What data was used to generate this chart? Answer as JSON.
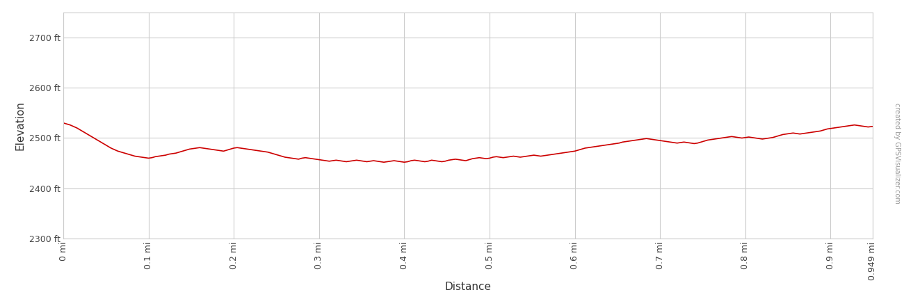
{
  "xlabel": "Distance",
  "ylabel": "Elevation",
  "watermark": "created by GPSVisualizer.com",
  "line_color": "#cc0000",
  "line_width": 1.2,
  "background_color": "#ffffff",
  "grid_color": "#cccccc",
  "ylim": [
    2300,
    2750
  ],
  "xlim": [
    0,
    0.949
  ],
  "yticks": [
    2300,
    2400,
    2500,
    2600,
    2700
  ],
  "ytick_labels": [
    "2300 ft",
    "2400 ft",
    "2500 ft",
    "2600 ft",
    "2700 ft"
  ],
  "xticks": [
    0,
    0.1,
    0.2,
    0.3,
    0.4,
    0.5,
    0.6,
    0.7,
    0.8,
    0.9,
    0.949
  ],
  "xtick_labels": [
    "0 mi",
    "0.1 mi",
    "0.2 mi",
    "0.3 mi",
    "0.4 mi",
    "0.5 mi",
    "0.6 mi",
    "0.7 mi",
    "0.8 mi",
    "0.9 mi",
    "0.949 mi"
  ],
  "elevation_data": [
    [
      0.0,
      2530
    ],
    [
      0.004,
      2528
    ],
    [
      0.008,
      2526
    ],
    [
      0.012,
      2523
    ],
    [
      0.016,
      2520
    ],
    [
      0.02,
      2516
    ],
    [
      0.024,
      2512
    ],
    [
      0.028,
      2508
    ],
    [
      0.032,
      2504
    ],
    [
      0.036,
      2500
    ],
    [
      0.04,
      2496
    ],
    [
      0.044,
      2492
    ],
    [
      0.048,
      2488
    ],
    [
      0.052,
      2484
    ],
    [
      0.056,
      2480
    ],
    [
      0.06,
      2477
    ],
    [
      0.064,
      2474
    ],
    [
      0.068,
      2472
    ],
    [
      0.072,
      2470
    ],
    [
      0.076,
      2468
    ],
    [
      0.08,
      2466
    ],
    [
      0.084,
      2464
    ],
    [
      0.088,
      2463
    ],
    [
      0.092,
      2462
    ],
    [
      0.096,
      2461
    ],
    [
      0.1,
      2460
    ],
    [
      0.104,
      2461
    ],
    [
      0.108,
      2463
    ],
    [
      0.112,
      2464
    ],
    [
      0.116,
      2465
    ],
    [
      0.12,
      2466
    ],
    [
      0.124,
      2468
    ],
    [
      0.128,
      2469
    ],
    [
      0.132,
      2470
    ],
    [
      0.136,
      2472
    ],
    [
      0.14,
      2474
    ],
    [
      0.144,
      2476
    ],
    [
      0.148,
      2478
    ],
    [
      0.152,
      2479
    ],
    [
      0.156,
      2480
    ],
    [
      0.16,
      2481
    ],
    [
      0.164,
      2480
    ],
    [
      0.168,
      2479
    ],
    [
      0.172,
      2478
    ],
    [
      0.176,
      2477
    ],
    [
      0.18,
      2476
    ],
    [
      0.184,
      2475
    ],
    [
      0.188,
      2474
    ],
    [
      0.192,
      2476
    ],
    [
      0.196,
      2478
    ],
    [
      0.2,
      2480
    ],
    [
      0.204,
      2481
    ],
    [
      0.208,
      2480
    ],
    [
      0.212,
      2479
    ],
    [
      0.216,
      2478
    ],
    [
      0.22,
      2477
    ],
    [
      0.224,
      2476
    ],
    [
      0.228,
      2475
    ],
    [
      0.232,
      2474
    ],
    [
      0.236,
      2473
    ],
    [
      0.24,
      2472
    ],
    [
      0.244,
      2470
    ],
    [
      0.248,
      2468
    ],
    [
      0.252,
      2466
    ],
    [
      0.256,
      2464
    ],
    [
      0.26,
      2462
    ],
    [
      0.264,
      2461
    ],
    [
      0.268,
      2460
    ],
    [
      0.272,
      2459
    ],
    [
      0.276,
      2458
    ],
    [
      0.28,
      2460
    ],
    [
      0.284,
      2461
    ],
    [
      0.288,
      2460
    ],
    [
      0.292,
      2459
    ],
    [
      0.296,
      2458
    ],
    [
      0.3,
      2457
    ],
    [
      0.304,
      2456
    ],
    [
      0.308,
      2455
    ],
    [
      0.312,
      2454
    ],
    [
      0.316,
      2455
    ],
    [
      0.32,
      2456
    ],
    [
      0.324,
      2455
    ],
    [
      0.328,
      2454
    ],
    [
      0.332,
      2453
    ],
    [
      0.336,
      2454
    ],
    [
      0.34,
      2455
    ],
    [
      0.344,
      2456
    ],
    [
      0.348,
      2455
    ],
    [
      0.352,
      2454
    ],
    [
      0.356,
      2453
    ],
    [
      0.36,
      2454
    ],
    [
      0.364,
      2455
    ],
    [
      0.368,
      2454
    ],
    [
      0.372,
      2453
    ],
    [
      0.376,
      2452
    ],
    [
      0.38,
      2453
    ],
    [
      0.384,
      2454
    ],
    [
      0.388,
      2455
    ],
    [
      0.392,
      2454
    ],
    [
      0.396,
      2453
    ],
    [
      0.4,
      2452
    ],
    [
      0.404,
      2453
    ],
    [
      0.408,
      2455
    ],
    [
      0.412,
      2456
    ],
    [
      0.416,
      2455
    ],
    [
      0.42,
      2454
    ],
    [
      0.424,
      2453
    ],
    [
      0.428,
      2454
    ],
    [
      0.432,
      2456
    ],
    [
      0.436,
      2455
    ],
    [
      0.44,
      2454
    ],
    [
      0.444,
      2453
    ],
    [
      0.448,
      2454
    ],
    [
      0.452,
      2456
    ],
    [
      0.456,
      2457
    ],
    [
      0.46,
      2458
    ],
    [
      0.464,
      2457
    ],
    [
      0.468,
      2456
    ],
    [
      0.472,
      2455
    ],
    [
      0.476,
      2457
    ],
    [
      0.48,
      2459
    ],
    [
      0.484,
      2460
    ],
    [
      0.488,
      2461
    ],
    [
      0.492,
      2460
    ],
    [
      0.496,
      2459
    ],
    [
      0.5,
      2460
    ],
    [
      0.504,
      2462
    ],
    [
      0.508,
      2463
    ],
    [
      0.512,
      2462
    ],
    [
      0.516,
      2461
    ],
    [
      0.52,
      2462
    ],
    [
      0.524,
      2463
    ],
    [
      0.528,
      2464
    ],
    [
      0.532,
      2463
    ],
    [
      0.536,
      2462
    ],
    [
      0.54,
      2463
    ],
    [
      0.544,
      2464
    ],
    [
      0.548,
      2465
    ],
    [
      0.552,
      2466
    ],
    [
      0.556,
      2465
    ],
    [
      0.56,
      2464
    ],
    [
      0.564,
      2465
    ],
    [
      0.568,
      2466
    ],
    [
      0.572,
      2467
    ],
    [
      0.576,
      2468
    ],
    [
      0.58,
      2469
    ],
    [
      0.584,
      2470
    ],
    [
      0.588,
      2471
    ],
    [
      0.592,
      2472
    ],
    [
      0.596,
      2473
    ],
    [
      0.6,
      2474
    ],
    [
      0.604,
      2476
    ],
    [
      0.608,
      2478
    ],
    [
      0.612,
      2480
    ],
    [
      0.616,
      2481
    ],
    [
      0.62,
      2482
    ],
    [
      0.624,
      2483
    ],
    [
      0.628,
      2484
    ],
    [
      0.632,
      2485
    ],
    [
      0.636,
      2486
    ],
    [
      0.64,
      2487
    ],
    [
      0.644,
      2488
    ],
    [
      0.648,
      2489
    ],
    [
      0.652,
      2490
    ],
    [
      0.656,
      2492
    ],
    [
      0.66,
      2493
    ],
    [
      0.664,
      2494
    ],
    [
      0.668,
      2495
    ],
    [
      0.672,
      2496
    ],
    [
      0.676,
      2497
    ],
    [
      0.68,
      2498
    ],
    [
      0.684,
      2499
    ],
    [
      0.688,
      2498
    ],
    [
      0.692,
      2497
    ],
    [
      0.696,
      2496
    ],
    [
      0.7,
      2495
    ],
    [
      0.704,
      2494
    ],
    [
      0.708,
      2493
    ],
    [
      0.712,
      2492
    ],
    [
      0.716,
      2491
    ],
    [
      0.72,
      2490
    ],
    [
      0.724,
      2491
    ],
    [
      0.728,
      2492
    ],
    [
      0.732,
      2491
    ],
    [
      0.736,
      2490
    ],
    [
      0.74,
      2489
    ],
    [
      0.744,
      2490
    ],
    [
      0.748,
      2492
    ],
    [
      0.752,
      2494
    ],
    [
      0.756,
      2496
    ],
    [
      0.76,
      2497
    ],
    [
      0.764,
      2498
    ],
    [
      0.768,
      2499
    ],
    [
      0.772,
      2500
    ],
    [
      0.776,
      2501
    ],
    [
      0.78,
      2502
    ],
    [
      0.784,
      2503
    ],
    [
      0.788,
      2502
    ],
    [
      0.792,
      2501
    ],
    [
      0.796,
      2500
    ],
    [
      0.8,
      2501
    ],
    [
      0.804,
      2502
    ],
    [
      0.808,
      2501
    ],
    [
      0.812,
      2500
    ],
    [
      0.816,
      2499
    ],
    [
      0.82,
      2498
    ],
    [
      0.824,
      2499
    ],
    [
      0.828,
      2500
    ],
    [
      0.832,
      2501
    ],
    [
      0.836,
      2503
    ],
    [
      0.84,
      2505
    ],
    [
      0.844,
      2507
    ],
    [
      0.848,
      2508
    ],
    [
      0.852,
      2509
    ],
    [
      0.856,
      2510
    ],
    [
      0.86,
      2509
    ],
    [
      0.864,
      2508
    ],
    [
      0.868,
      2509
    ],
    [
      0.872,
      2510
    ],
    [
      0.876,
      2511
    ],
    [
      0.88,
      2512
    ],
    [
      0.884,
      2513
    ],
    [
      0.888,
      2514
    ],
    [
      0.892,
      2516
    ],
    [
      0.896,
      2518
    ],
    [
      0.9,
      2519
    ],
    [
      0.904,
      2520
    ],
    [
      0.908,
      2521
    ],
    [
      0.912,
      2522
    ],
    [
      0.916,
      2523
    ],
    [
      0.92,
      2524
    ],
    [
      0.924,
      2525
    ],
    [
      0.928,
      2526
    ],
    [
      0.932,
      2525
    ],
    [
      0.936,
      2524
    ],
    [
      0.94,
      2523
    ],
    [
      0.944,
      2522
    ],
    [
      0.949,
      2523
    ]
  ]
}
